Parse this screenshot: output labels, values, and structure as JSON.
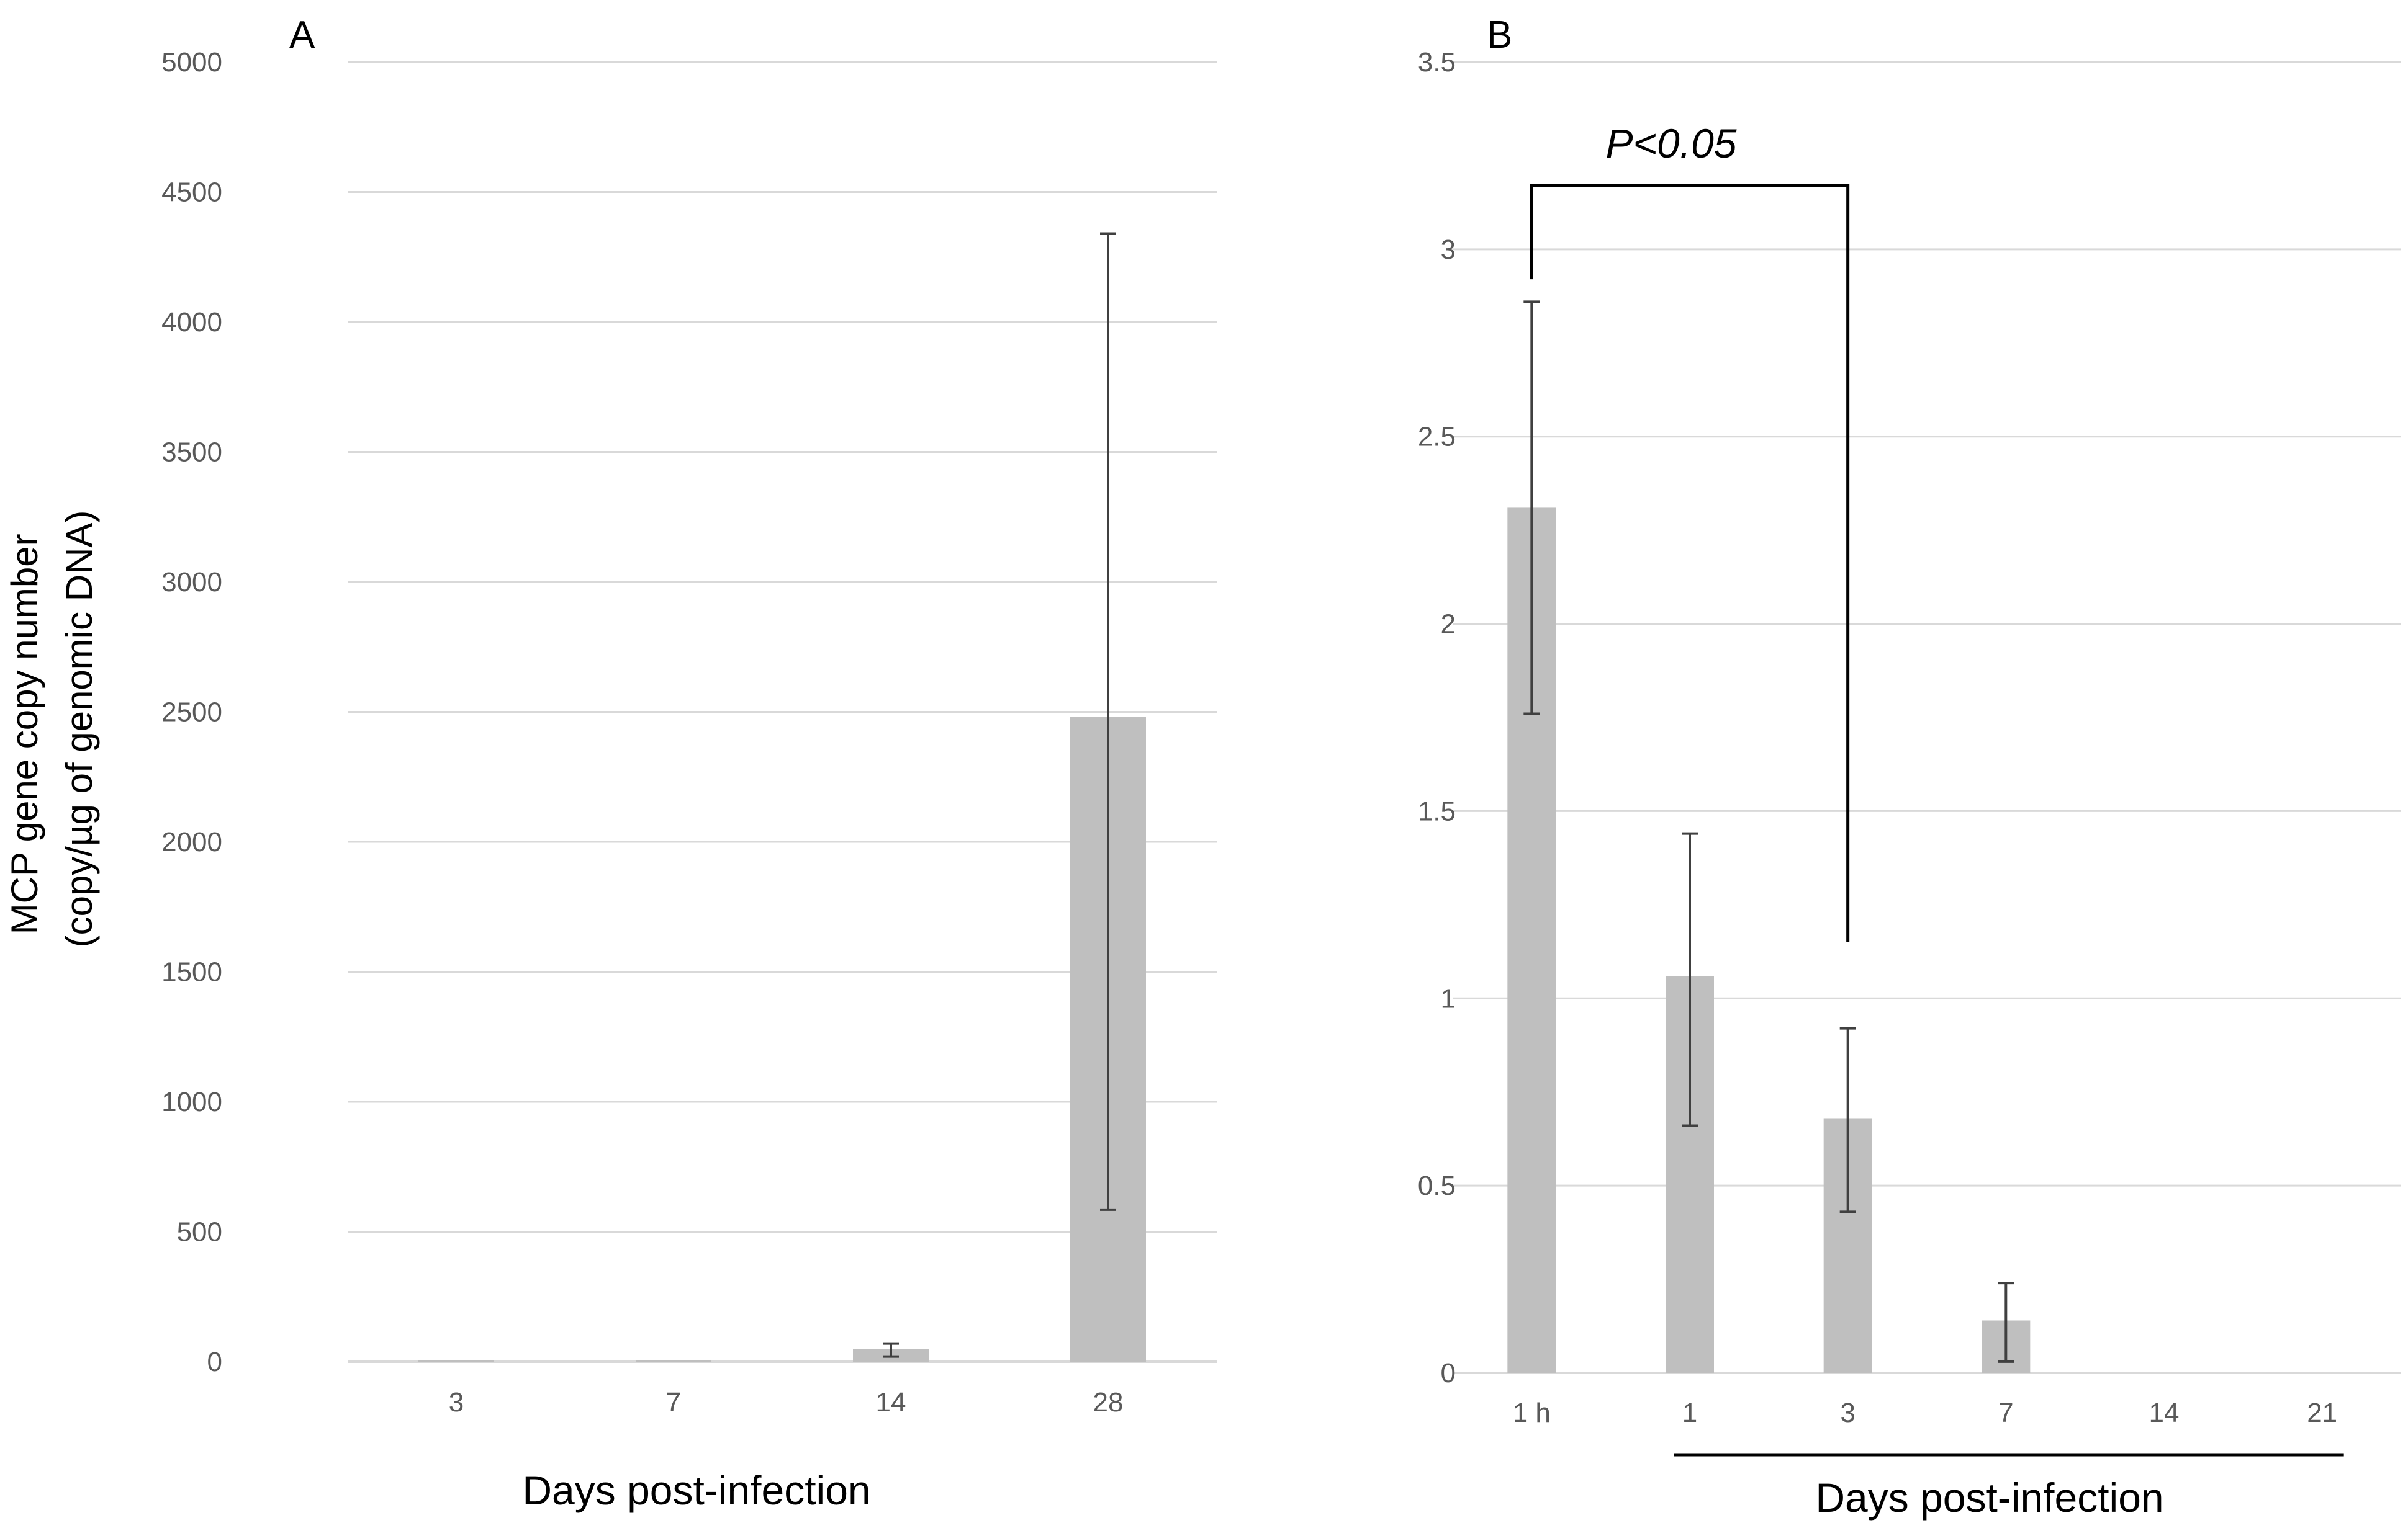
{
  "figure": {
    "y_axis_label_line1": "MCP gene copy number",
    "y_axis_label_line2": "(copy/µg of genomic DNA)"
  },
  "colors": {
    "bar": "#bfbfbf",
    "grid": "#d9d9d9",
    "error_bar": "#404040",
    "tick_text": "#595959",
    "annotation": "#000000"
  },
  "chart_data": [
    {
      "type": "bar",
      "panel": "A",
      "categories": [
        "3",
        "7",
        "14",
        "28"
      ],
      "values": [
        2,
        3,
        50,
        2480
      ],
      "error_low": [
        2,
        3,
        20,
        585
      ],
      "error_high": [
        2,
        3,
        70,
        4340
      ],
      "xlabel": "Days post-infection",
      "ylabel": "MCP gene copy number (copy/µg of genomic DNA)",
      "ylim": [
        0,
        5000
      ],
      "yticks": [
        0,
        500,
        1000,
        1500,
        2000,
        2500,
        3000,
        3500,
        4000,
        4500,
        5000
      ],
      "grid": true
    },
    {
      "type": "bar",
      "panel": "B",
      "categories": [
        "1 h",
        "1",
        "3",
        "7",
        "14",
        "21"
      ],
      "values": [
        2.31,
        1.06,
        0.68,
        0.14,
        0,
        0
      ],
      "error_low": [
        1.76,
        0.66,
        0.43,
        0.03,
        0,
        0
      ],
      "error_high": [
        2.86,
        1.44,
        0.92,
        0.24,
        0,
        0
      ],
      "xlabel": "Days post-infection",
      "ylim": [
        0,
        3.5
      ],
      "yticks": [
        "0",
        "0.5",
        "1",
        "1.5",
        "2",
        "2.5",
        "3",
        "3.5"
      ],
      "grid": true,
      "significance": {
        "label": "P<0.05",
        "from_category": "1 h",
        "to_category": "3",
        "left_drop": 2.92,
        "right_drop": 1.15,
        "bracket_level": 3.17
      },
      "day_underline": {
        "from_category": "1",
        "to_category": "21"
      }
    }
  ]
}
